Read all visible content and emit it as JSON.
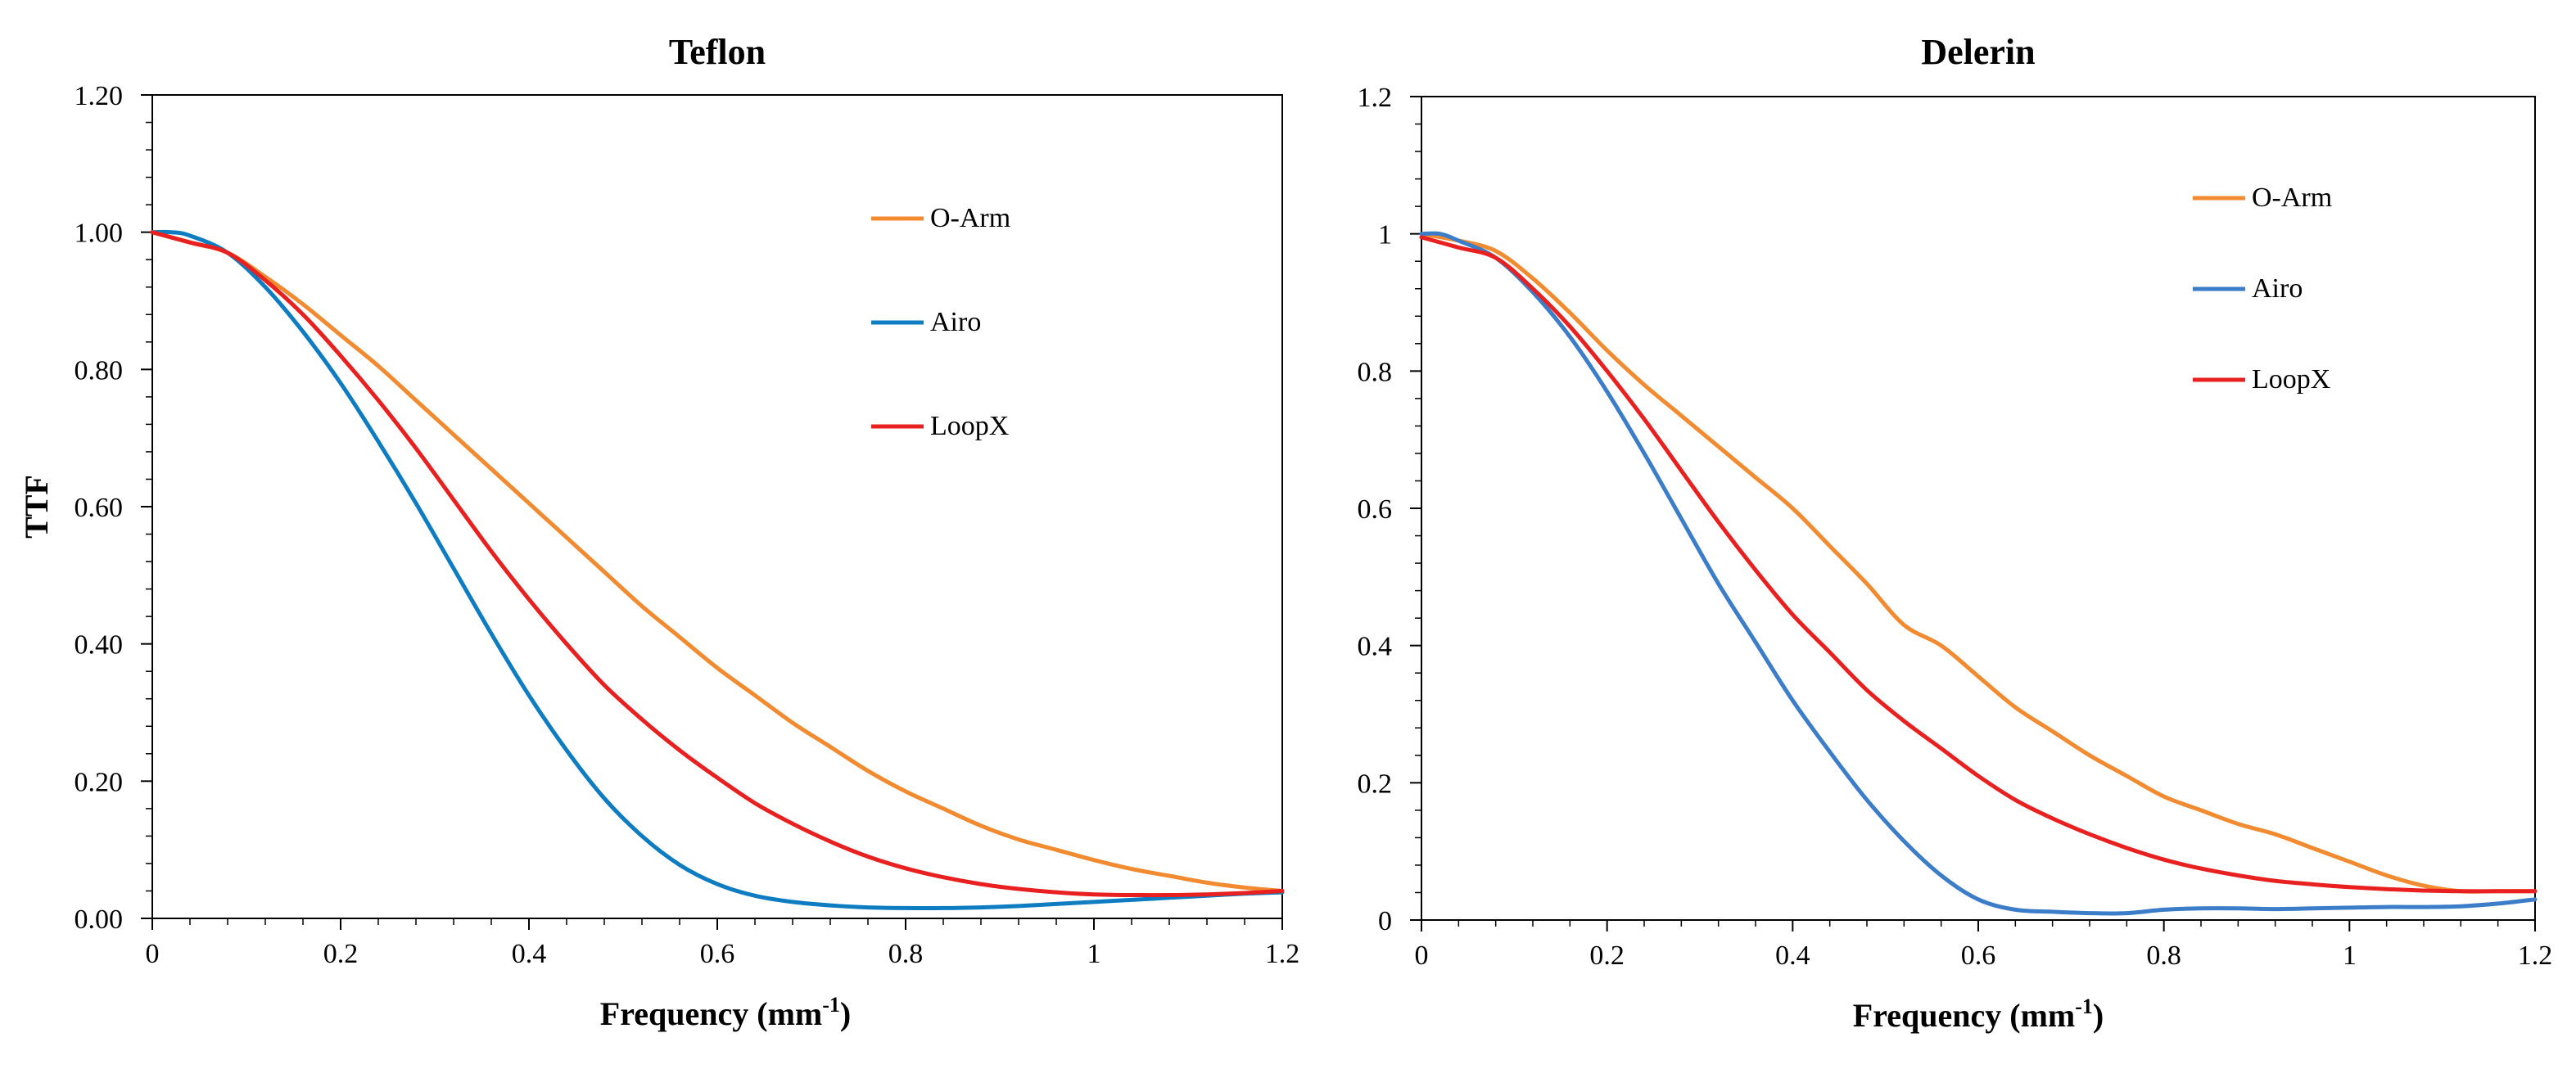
{
  "chart_data": [
    {
      "type": "line",
      "title": "Teflon",
      "xlabel": "Frequency (mm",
      "xlabel_sup": "-1",
      "xlabel_close": ")",
      "ylabel": "TTF",
      "xlim": [
        0,
        1.2
      ],
      "ylim": [
        0,
        1.2
      ],
      "xticks": [
        0,
        0.2,
        0.4,
        0.6,
        0.8,
        1,
        1.2
      ],
      "xtick_labels": [
        "0",
        "0.2",
        "0.4",
        "0.6",
        "0.8",
        "1",
        "1.2"
      ],
      "yticks": [
        0,
        0.2,
        0.4,
        0.6,
        0.8,
        1.0,
        1.2
      ],
      "ytick_labels": [
        "0.00",
        "0.20",
        "0.40",
        "0.60",
        "0.80",
        "1.00",
        "1.20"
      ],
      "grid": false,
      "legend_position": "right",
      "series": [
        {
          "name": "O-Arm",
          "color": "#F28A30",
          "x": [
            0,
            0.04,
            0.08,
            0.12,
            0.16,
            0.2,
            0.24,
            0.28,
            0.32,
            0.36,
            0.4,
            0.44,
            0.48,
            0.52,
            0.56,
            0.6,
            0.64,
            0.68,
            0.72,
            0.76,
            0.8,
            0.84,
            0.88,
            0.92,
            0.96,
            1.0,
            1.04,
            1.08,
            1.12,
            1.16,
            1.2
          ],
          "y": [
            1.0,
            0.985,
            0.97,
            0.935,
            0.895,
            0.85,
            0.805,
            0.755,
            0.705,
            0.655,
            0.605,
            0.555,
            0.505,
            0.455,
            0.41,
            0.365,
            0.325,
            0.285,
            0.25,
            0.215,
            0.185,
            0.16,
            0.135,
            0.115,
            0.1,
            0.085,
            0.072,
            0.062,
            0.052,
            0.045,
            0.04
          ]
        },
        {
          "name": "Airo",
          "color": "#0E7CC1",
          "x": [
            0,
            0.02,
            0.04,
            0.08,
            0.12,
            0.16,
            0.2,
            0.24,
            0.28,
            0.32,
            0.36,
            0.4,
            0.44,
            0.48,
            0.52,
            0.56,
            0.6,
            0.64,
            0.68,
            0.72,
            0.76,
            0.8,
            0.84,
            0.88,
            0.92,
            0.96,
            1.0,
            1.04,
            1.08,
            1.12,
            1.16,
            1.2
          ],
          "y": [
            1.0,
            1.0,
            0.995,
            0.97,
            0.92,
            0.855,
            0.78,
            0.695,
            0.605,
            0.51,
            0.415,
            0.325,
            0.245,
            0.175,
            0.12,
            0.078,
            0.05,
            0.033,
            0.024,
            0.019,
            0.016,
            0.015,
            0.015,
            0.016,
            0.018,
            0.021,
            0.024,
            0.027,
            0.03,
            0.033,
            0.036,
            0.038
          ]
        },
        {
          "name": "LoopX",
          "color": "#E8201F",
          "x": [
            0,
            0.04,
            0.08,
            0.12,
            0.16,
            0.2,
            0.24,
            0.28,
            0.32,
            0.36,
            0.4,
            0.44,
            0.48,
            0.52,
            0.56,
            0.6,
            0.64,
            0.68,
            0.72,
            0.76,
            0.8,
            0.84,
            0.88,
            0.92,
            0.96,
            1.0,
            1.04,
            1.08,
            1.12,
            1.16,
            1.2
          ],
          "y": [
            1.0,
            0.985,
            0.97,
            0.93,
            0.88,
            0.82,
            0.755,
            0.685,
            0.61,
            0.535,
            0.465,
            0.4,
            0.34,
            0.29,
            0.245,
            0.205,
            0.168,
            0.138,
            0.112,
            0.09,
            0.073,
            0.06,
            0.05,
            0.043,
            0.038,
            0.035,
            0.034,
            0.034,
            0.035,
            0.037,
            0.04
          ]
        }
      ]
    },
    {
      "type": "line",
      "title": "Delerin",
      "xlabel": "Frequency (mm",
      "xlabel_sup": "-1",
      "xlabel_close": ")",
      "ylabel": "",
      "xlim": [
        0,
        1.2
      ],
      "ylim": [
        0,
        1.2
      ],
      "xticks": [
        0,
        0.2,
        0.4,
        0.6,
        0.8,
        1,
        1.2
      ],
      "xtick_labels": [
        "0",
        "0.2",
        "0.4",
        "0.6",
        "0.8",
        "1",
        "1.2"
      ],
      "yticks": [
        0,
        0.2,
        0.4,
        0.6,
        0.8,
        1.0,
        1.2
      ],
      "ytick_labels": [
        "0",
        "0.2",
        "0.4",
        "0.6",
        "0.8",
        "1",
        "1.2"
      ],
      "grid": false,
      "legend_position": "right",
      "series": [
        {
          "name": "O-Arm",
          "color": "#F28A30",
          "x": [
            0,
            0.04,
            0.08,
            0.12,
            0.16,
            0.2,
            0.24,
            0.28,
            0.32,
            0.36,
            0.4,
            0.44,
            0.48,
            0.52,
            0.56,
            0.6,
            0.64,
            0.68,
            0.72,
            0.76,
            0.8,
            0.84,
            0.88,
            0.92,
            0.96,
            1.0,
            1.04,
            1.08,
            1.12,
            1.16,
            1.2
          ],
          "y": [
            1.0,
            0.99,
            0.975,
            0.935,
            0.885,
            0.83,
            0.78,
            0.735,
            0.69,
            0.645,
            0.6,
            0.545,
            0.49,
            0.43,
            0.4,
            0.355,
            0.31,
            0.275,
            0.24,
            0.21,
            0.18,
            0.16,
            0.14,
            0.125,
            0.105,
            0.085,
            0.065,
            0.05,
            0.042,
            0.042,
            0.042
          ]
        },
        {
          "name": "Airo",
          "color": "#3B7DC9",
          "x": [
            0,
            0.02,
            0.04,
            0.08,
            0.12,
            0.16,
            0.2,
            0.24,
            0.28,
            0.32,
            0.36,
            0.4,
            0.44,
            0.48,
            0.52,
            0.56,
            0.6,
            0.64,
            0.68,
            0.72,
            0.76,
            0.8,
            0.84,
            0.88,
            0.92,
            0.96,
            1.0,
            1.04,
            1.08,
            1.12,
            1.16,
            1.2
          ],
          "y": [
            1.0,
            1.0,
            0.99,
            0.965,
            0.915,
            0.85,
            0.77,
            0.68,
            0.585,
            0.49,
            0.405,
            0.32,
            0.245,
            0.175,
            0.115,
            0.065,
            0.03,
            0.015,
            0.012,
            0.01,
            0.01,
            0.015,
            0.017,
            0.017,
            0.016,
            0.017,
            0.018,
            0.019,
            0.019,
            0.02,
            0.024,
            0.03
          ]
        },
        {
          "name": "LoopX",
          "color": "#E8201F",
          "x": [
            0,
            0.04,
            0.08,
            0.12,
            0.16,
            0.2,
            0.24,
            0.28,
            0.32,
            0.36,
            0.4,
            0.44,
            0.48,
            0.52,
            0.56,
            0.6,
            0.64,
            0.68,
            0.72,
            0.76,
            0.8,
            0.84,
            0.88,
            0.92,
            0.96,
            1.0,
            1.04,
            1.08,
            1.12,
            1.16,
            1.2
          ],
          "y": [
            0.995,
            0.98,
            0.965,
            0.92,
            0.865,
            0.8,
            0.73,
            0.655,
            0.58,
            0.51,
            0.445,
            0.39,
            0.335,
            0.29,
            0.25,
            0.21,
            0.175,
            0.148,
            0.125,
            0.105,
            0.088,
            0.075,
            0.065,
            0.057,
            0.052,
            0.048,
            0.045,
            0.043,
            0.042,
            0.042,
            0.042
          ]
        }
      ]
    }
  ]
}
